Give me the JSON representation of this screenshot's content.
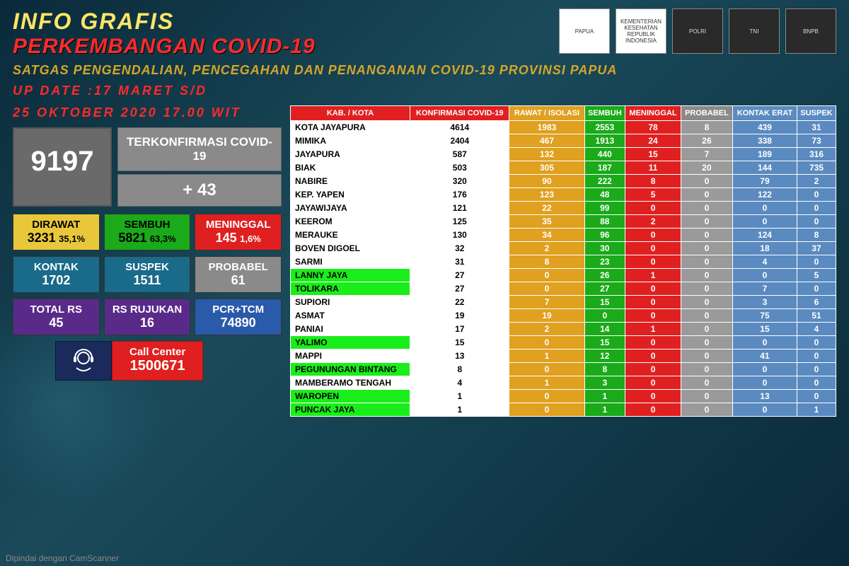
{
  "header": {
    "title1": "INFO GRAFIS",
    "title2": "PERKEMBANGAN COVID-19",
    "subtitle": "SATGAS PENGENDALIAN, PENCEGAHAN DAN PENANGANAN COVID-19 PROVINSI PAPUA",
    "update_line1": "UP DATE :17 MARET S/D",
    "update_line2": "25 OKTOBER 2020 17.00 WIT",
    "logos": [
      "PAPUA",
      "KEMENTERIAN KESEHATAN REPUBLIK INDONESIA",
      "POLRI",
      "TNI",
      "BNPB"
    ]
  },
  "left": {
    "confirmed_total": "9197",
    "confirmed_label": "TERKONFIRMASI COVID-19",
    "confirmed_plus": "+ 43",
    "stats1": [
      {
        "label": "DIRAWAT",
        "val": "3231",
        "pct": "35,1%",
        "cls": "yellow"
      },
      {
        "label": "SEMBUH",
        "val": "5821",
        "pct": "63,3%",
        "cls": "green"
      },
      {
        "label": "MENINGGAL",
        "val": "145",
        "pct": "1,6%",
        "cls": "red"
      }
    ],
    "stats2": [
      {
        "label": "KONTAK",
        "val": "1702",
        "cls": "teal"
      },
      {
        "label": "SUSPEK",
        "val": "1511",
        "cls": "teal"
      },
      {
        "label": "PROBABEL",
        "val": "61",
        "cls": "gray"
      }
    ],
    "stats3": [
      {
        "label": "TOTAL RS",
        "val": "45",
        "cls": "purple"
      },
      {
        "label": "RS RUJUKAN",
        "val": "16",
        "cls": "purple"
      },
      {
        "label": "PCR+TCM",
        "val": "74890",
        "cls": "blue"
      }
    ],
    "call_label": "Call Center",
    "call_num": "1500671"
  },
  "table": {
    "headers": [
      {
        "text": "KAB. / KOTA",
        "cls": "th-red"
      },
      {
        "text": "KONFIRMASI COVID-19",
        "cls": "th-red"
      },
      {
        "text": "RAWAT / ISOLASI",
        "cls": "th-orange"
      },
      {
        "text": "SEMBUH",
        "cls": "th-green"
      },
      {
        "text": "MENINGGAL",
        "cls": "th-red"
      },
      {
        "text": "PROBABEL",
        "cls": "th-gray"
      },
      {
        "text": "KONTAK ERAT",
        "cls": "th-blue"
      },
      {
        "text": "SUSPEK",
        "cls": "th-blue"
      }
    ],
    "col_cls": [
      "td-name",
      "td-white",
      "td-orange",
      "td-green",
      "td-red",
      "td-gray",
      "td-blue",
      "td-blue"
    ],
    "rows": [
      {
        "green": false,
        "cells": [
          "KOTA JAYAPURA",
          "4614",
          "1983",
          "2553",
          "78",
          "8",
          "439",
          "31"
        ]
      },
      {
        "green": false,
        "cells": [
          "MIMIKA",
          "2404",
          "467",
          "1913",
          "24",
          "26",
          "338",
          "73"
        ]
      },
      {
        "green": false,
        "cells": [
          "JAYAPURA",
          "587",
          "132",
          "440",
          "15",
          "7",
          "189",
          "316"
        ]
      },
      {
        "green": false,
        "cells": [
          "BIAK",
          "503",
          "305",
          "187",
          "11",
          "20",
          "144",
          "735"
        ]
      },
      {
        "green": false,
        "cells": [
          "NABIRE",
          "320",
          "90",
          "222",
          "8",
          "0",
          "79",
          "2"
        ]
      },
      {
        "green": false,
        "cells": [
          "KEP. YAPEN",
          "176",
          "123",
          "48",
          "5",
          "0",
          "122",
          "0"
        ]
      },
      {
        "green": false,
        "cells": [
          "JAYAWIJAYA",
          "121",
          "22",
          "99",
          "0",
          "0",
          "0",
          "0"
        ]
      },
      {
        "green": false,
        "cells": [
          "KEEROM",
          "125",
          "35",
          "88",
          "2",
          "0",
          "0",
          "0"
        ]
      },
      {
        "green": false,
        "cells": [
          "MERAUKE",
          "130",
          "34",
          "96",
          "0",
          "0",
          "124",
          "8"
        ]
      },
      {
        "green": false,
        "cells": [
          "BOVEN DIGOEL",
          "32",
          "2",
          "30",
          "0",
          "0",
          "18",
          "37"
        ]
      },
      {
        "green": false,
        "cells": [
          "SARMI",
          "31",
          "8",
          "23",
          "0",
          "0",
          "4",
          "0"
        ]
      },
      {
        "green": true,
        "cells": [
          "LANNY JAYA",
          "27",
          "0",
          "26",
          "1",
          "0",
          "0",
          "5"
        ]
      },
      {
        "green": true,
        "cells": [
          "TOLIKARA",
          "27",
          "0",
          "27",
          "0",
          "0",
          "7",
          "0"
        ]
      },
      {
        "green": false,
        "cells": [
          "SUPIORI",
          "22",
          "7",
          "15",
          "0",
          "0",
          "3",
          "6"
        ]
      },
      {
        "green": false,
        "cells": [
          "ASMAT",
          "19",
          "19",
          "0",
          "0",
          "0",
          "75",
          "51"
        ]
      },
      {
        "green": false,
        "cells": [
          "PANIAI",
          "17",
          "2",
          "14",
          "1",
          "0",
          "15",
          "4"
        ]
      },
      {
        "green": true,
        "cells": [
          "YALIMO",
          "15",
          "0",
          "15",
          "0",
          "0",
          "0",
          "0"
        ]
      },
      {
        "green": false,
        "cells": [
          "MAPPI",
          "13",
          "1",
          "12",
          "0",
          "0",
          "41",
          "0"
        ]
      },
      {
        "green": true,
        "cells": [
          "PEGUNUNGAN BINTANG",
          "8",
          "0",
          "8",
          "0",
          "0",
          "0",
          "0"
        ]
      },
      {
        "green": false,
        "cells": [
          "MAMBERAMO TENGAH",
          "4",
          "1",
          "3",
          "0",
          "0",
          "0",
          "0"
        ]
      },
      {
        "green": true,
        "cells": [
          "WAROPEN",
          "1",
          "0",
          "1",
          "0",
          "0",
          "13",
          "0"
        ]
      },
      {
        "green": true,
        "cells": [
          "PUNCAK JAYA",
          "1",
          "0",
          "1",
          "0",
          "0",
          "0",
          "1"
        ]
      }
    ]
  },
  "footer_scan": "Dipindai dengan CamScanner"
}
